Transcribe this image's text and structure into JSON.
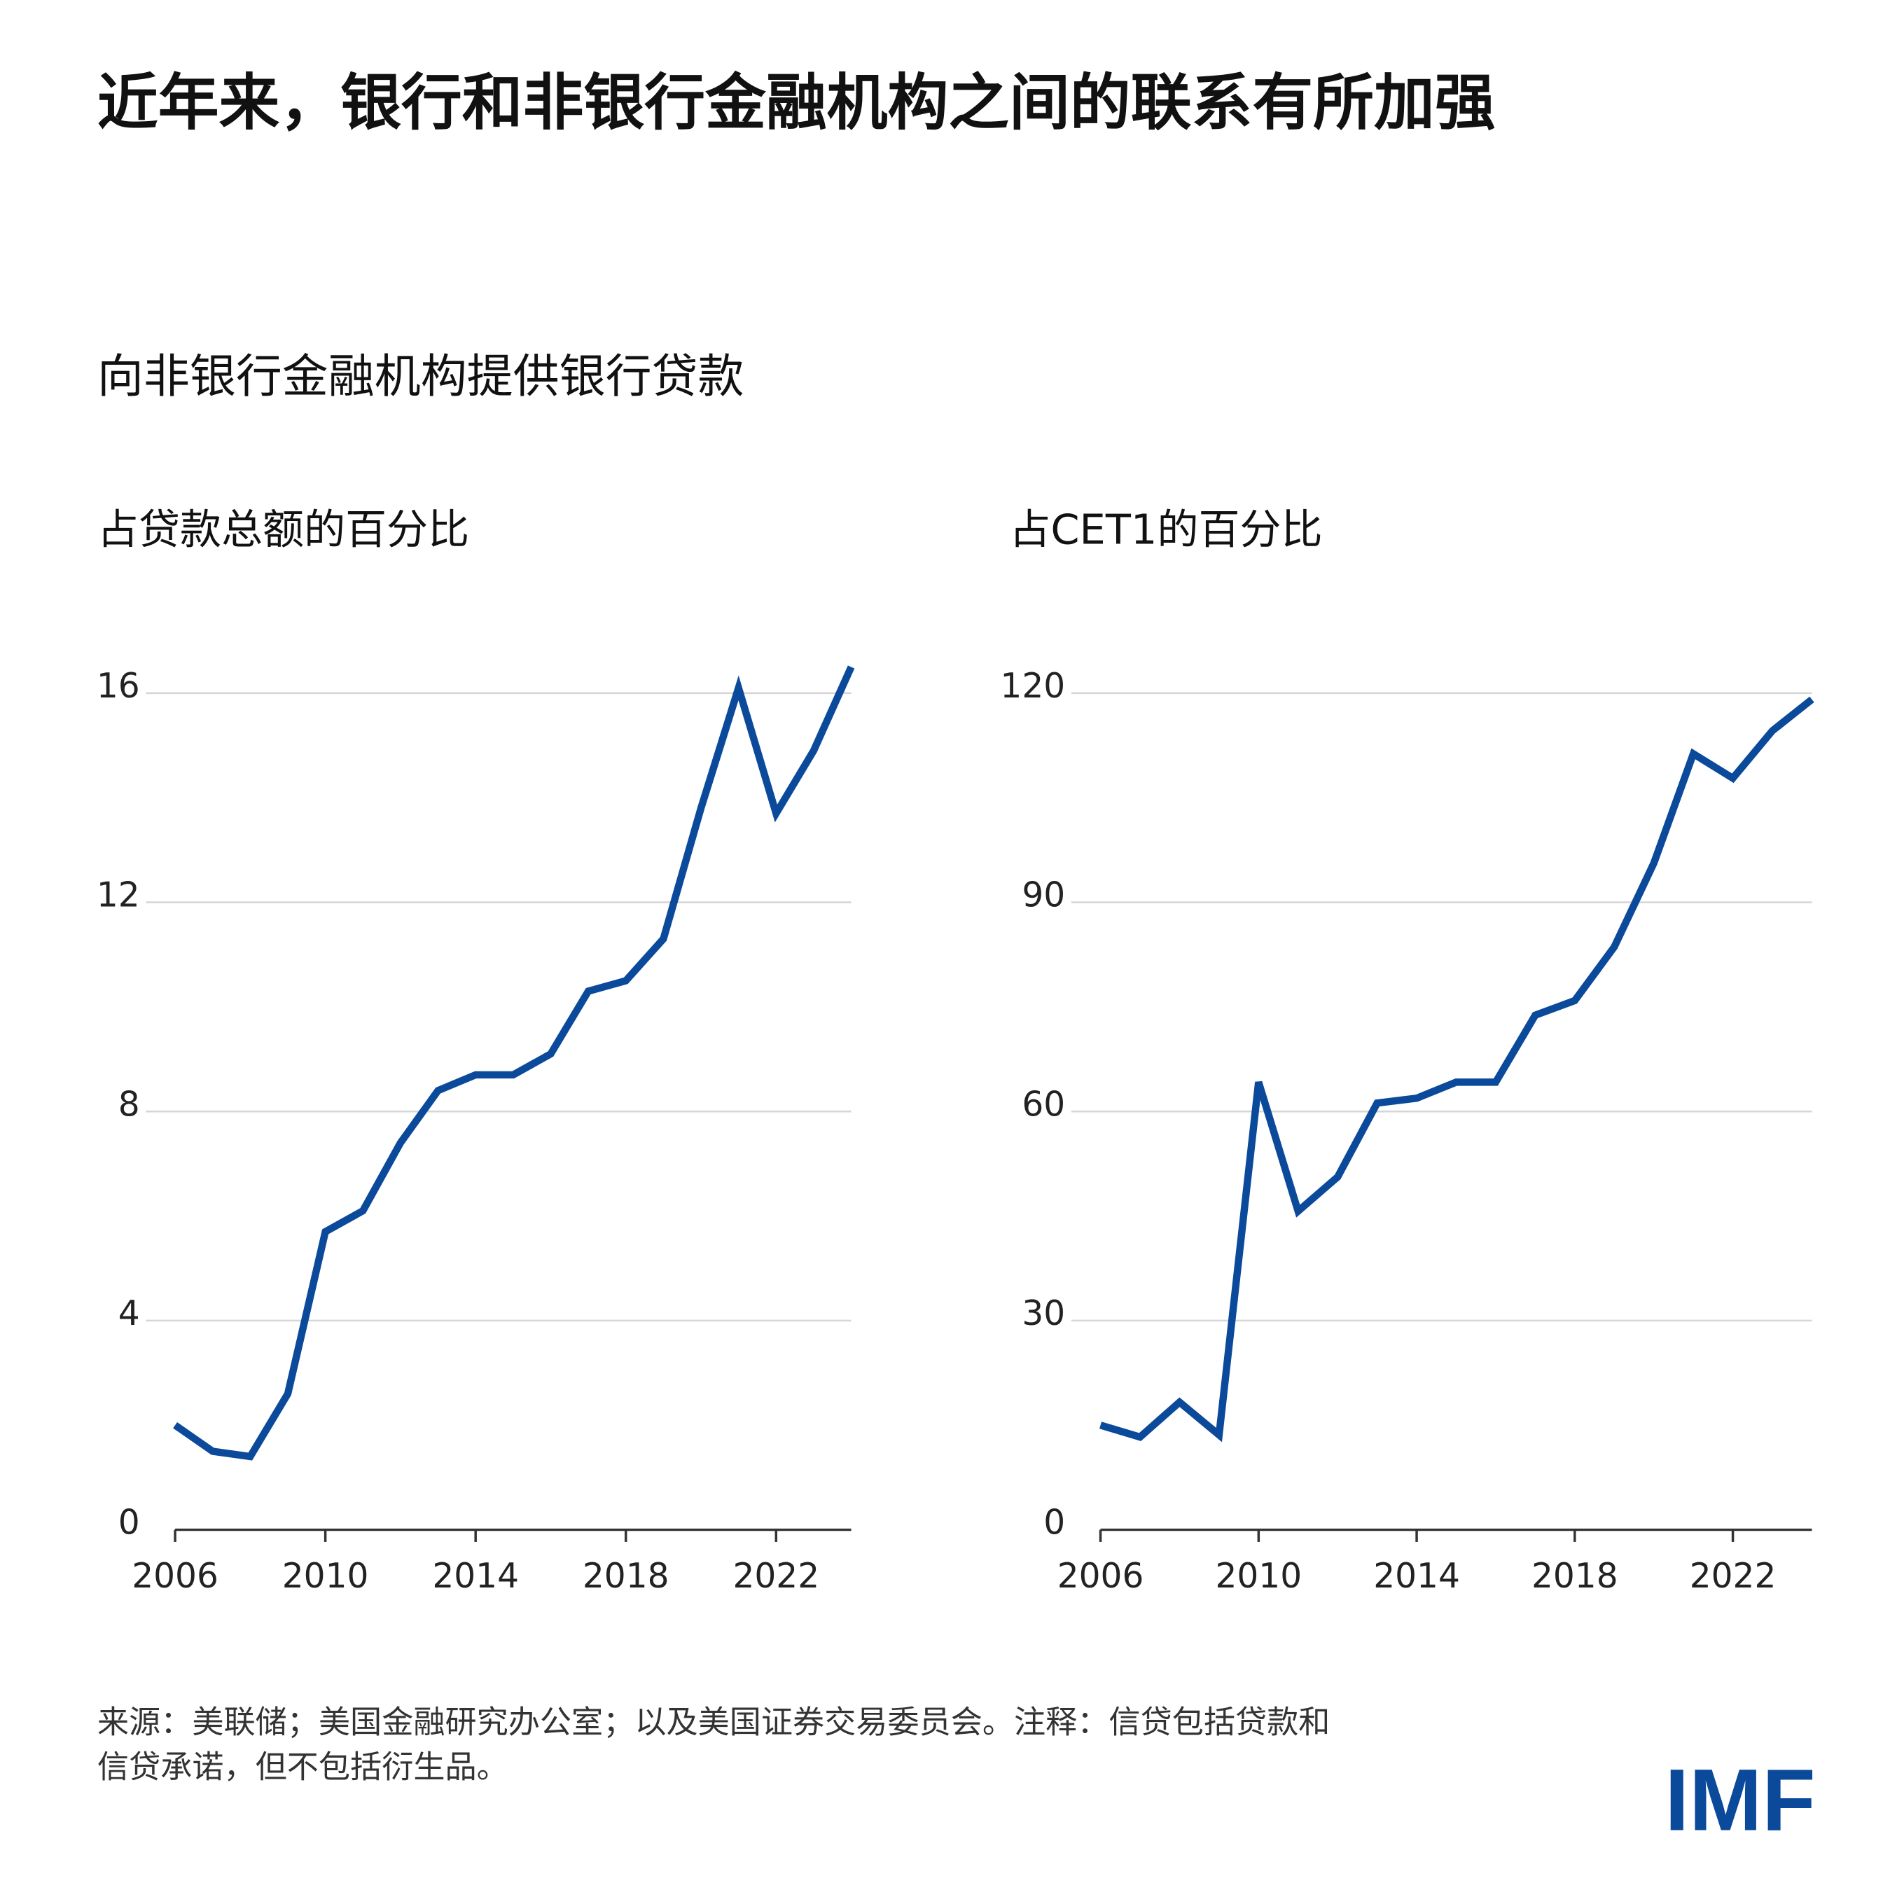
{
  "title": "近年来，银行和非银行金融机构之间的联系有所加强",
  "subtitle": "向非银行金融机构提供银行贷款",
  "notes": [
    "来源：美联储；美国金融研究办公室；以及美国证券交易委员会。注释：信贷包括贷款和",
    "信贷承诺，但不包括衍生品。"
  ],
  "logo": "IMF",
  "chart_data": [
    {
      "type": "line",
      "title": "占贷款总额的百分比",
      "color": "#0b4a9a",
      "grid": true,
      "x": [
        2006,
        2007,
        2008,
        2009,
        2010,
        2011,
        2012,
        2013,
        2014,
        2015,
        2016,
        2017,
        2018,
        2019,
        2020,
        2021,
        2022,
        2023,
        2024
      ],
      "values": [
        2.0,
        1.5,
        1.4,
        2.6,
        5.7,
        6.1,
        7.4,
        8.4,
        8.7,
        8.7,
        9.1,
        10.3,
        10.5,
        11.3,
        13.8,
        16.1,
        13.7,
        14.9,
        16.5
      ],
      "xlim": [
        2006,
        2024
      ],
      "xticks": [
        2006,
        2010,
        2014,
        2018,
        2022
      ],
      "ylim": [
        0,
        16
      ],
      "yticks": [
        0,
        4,
        8,
        12,
        16
      ]
    },
    {
      "type": "line",
      "title": "占CET1的百分比",
      "color": "#0b4a9a",
      "grid": true,
      "x": [
        2006,
        2007,
        2008,
        2009,
        2010,
        2011,
        2012,
        2013,
        2014,
        2015,
        2016,
        2017,
        2018,
        2019,
        2020,
        2021,
        2022,
        2023,
        2024
      ],
      "values": [
        15,
        13.3,
        18.3,
        13.6,
        64.2,
        45.7,
        50.6,
        61.2,
        61.9,
        64.2,
        64.2,
        73.8,
        75.9,
        83.6,
        95.6,
        111.3,
        107.8,
        114.6,
        119.1
      ],
      "xlim": [
        2006,
        2024
      ],
      "xticks": [
        2006,
        2010,
        2014,
        2018,
        2022
      ],
      "ylim": [
        0,
        120
      ],
      "yticks": [
        0,
        30,
        60,
        90,
        120
      ]
    }
  ]
}
